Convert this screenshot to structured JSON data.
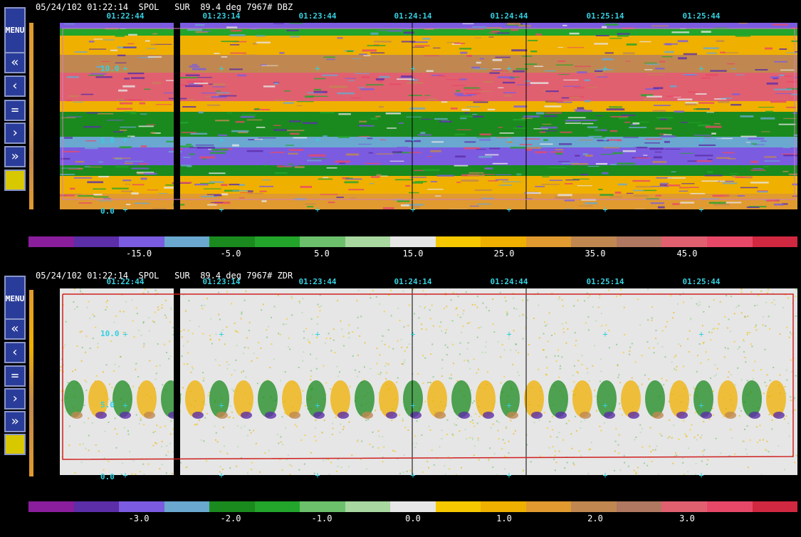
{
  "panels": [
    {
      "header": "05/24/102 01:22:14  SPOL   SUR  89.4 deg 7967# DBZ",
      "menu_label": [
        "M",
        "E",
        "N",
        "U"
      ],
      "times": [
        "01:22:44",
        "01:23:14",
        "01:23:44",
        "01:24:14",
        "01:24:44",
        "01:25:14",
        "01:25:44"
      ],
      "altitudes": [
        "10.0",
        "5.0",
        "0.0"
      ],
      "colorbar": {
        "colors": [
          "#8a1e9c",
          "#5c2ea8",
          "#7b5ce0",
          "#6aa8d0",
          "#1a8a1e",
          "#22a52a",
          "#6cc06c",
          "#a8d8a0",
          "#e6e6e6",
          "#f5c800",
          "#f0b000",
          "#e09a30",
          "#c08850",
          "#b07860",
          "#e06070",
          "#e84868",
          "#d02840"
        ],
        "labels": [
          "-15.0",
          "-5.0",
          "5.0",
          "15.0",
          "25.0",
          "35.0",
          "45.0"
        ]
      },
      "field": "DBZ"
    },
    {
      "header": "05/24/102 01:22:14  SPOL   SUR  89.4 deg 7967# ZDR",
      "menu_label": [
        "M",
        "E",
        "N",
        "U"
      ],
      "times": [
        "01:22:44",
        "01:23:14",
        "01:23:44",
        "01:24:14",
        "01:24:44",
        "01:25:14",
        "01:25:44"
      ],
      "altitudes": [
        "10.0",
        "5.0",
        "0.0"
      ],
      "colorbar": {
        "colors": [
          "#8a1e9c",
          "#5c2ea8",
          "#7b5ce0",
          "#6aa8d0",
          "#1a8a1e",
          "#22a52a",
          "#6cc06c",
          "#a8d8a0",
          "#e6e6e6",
          "#f5c800",
          "#f0b000",
          "#e09a30",
          "#c08850",
          "#b07860",
          "#e06070",
          "#e84868",
          "#d02840"
        ],
        "labels": [
          "-3.0",
          "-2.0",
          "-1.0",
          "0.0",
          "1.0",
          "2.0",
          "3.0"
        ]
      },
      "field": "ZDR"
    }
  ],
  "toolbar_icons": [
    "menu",
    "rewind-icon",
    "step-back-icon",
    "equal-icon",
    "step-forward-icon",
    "fast-forward-icon",
    "color-swatch"
  ],
  "toolbar_glyphs": {
    "rewind": "«",
    "back": "‹",
    "equal": "=",
    "forward": "›",
    "ffwd": "»"
  }
}
